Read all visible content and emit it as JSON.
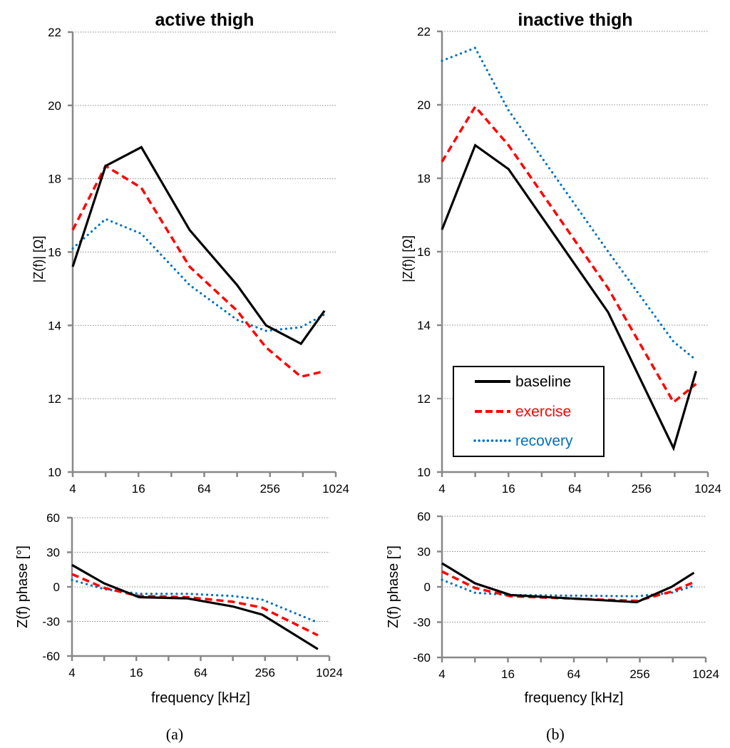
{
  "figure": {
    "captions": [
      "(a)",
      "(b)"
    ],
    "legend": {
      "items": [
        {
          "label": "baseline",
          "color": "#000000",
          "style": "solid"
        },
        {
          "label": "exercise",
          "color": "#ff0000",
          "style": "dashed"
        },
        {
          "label": "recovery",
          "color": "#0070c0",
          "style": "dotted"
        }
      ],
      "placement": "lower-left of inactive thigh magnitude panel"
    }
  },
  "chart_data": [
    {
      "id": "active-magnitude",
      "type": "line",
      "title": "active thigh",
      "xlabel": "",
      "ylabel": "|Z(f)| [Ω]",
      "xscale": "log2",
      "xlim": [
        4,
        1024
      ],
      "xticks": [
        "4",
        "16",
        "64",
        "256",
        "1024"
      ],
      "ylim": [
        10,
        22
      ],
      "yticks": [
        "10",
        "12",
        "14",
        "16",
        "18",
        "20",
        "22"
      ],
      "grid": true,
      "series": [
        {
          "name": "baseline",
          "x": [
            4,
            8,
            17,
            47,
            128,
            235,
            492,
            808
          ],
          "values": [
            15.6,
            18.35,
            18.86,
            16.6,
            15.1,
            14.0,
            13.5,
            14.4
          ]
        },
        {
          "name": "exercise",
          "x": [
            4,
            8,
            17,
            47,
            128,
            235,
            492,
            808
          ],
          "values": [
            16.6,
            18.35,
            17.75,
            15.6,
            14.4,
            13.4,
            12.6,
            12.75
          ]
        },
        {
          "name": "recovery",
          "x": [
            4,
            8,
            17,
            47,
            128,
            235,
            492,
            808
          ],
          "values": [
            16.1,
            16.9,
            16.5,
            15.1,
            14.15,
            13.85,
            13.95,
            14.3
          ]
        }
      ]
    },
    {
      "id": "inactive-magnitude",
      "type": "line",
      "title": "inactive thigh",
      "xlabel": "",
      "ylabel": "|Z(f)| [Ω]",
      "xscale": "log2",
      "xlim": [
        4,
        1024
      ],
      "xticks": [
        "4",
        "16",
        "64",
        "256",
        "1024"
      ],
      "ylim": [
        10,
        22
      ],
      "yticks": [
        "10",
        "12",
        "14",
        "16",
        "18",
        "20",
        "22"
      ],
      "grid": true,
      "series": [
        {
          "name": "baseline",
          "x": [
            4,
            8,
            16,
            128,
            500,
            800
          ],
          "values": [
            16.6,
            18.9,
            18.25,
            14.35,
            10.65,
            12.75
          ]
        },
        {
          "name": "exercise",
          "x": [
            4,
            8,
            16,
            128,
            500,
            800
          ],
          "values": [
            18.45,
            19.95,
            18.9,
            15.0,
            11.9,
            12.4
          ]
        },
        {
          "name": "recovery",
          "x": [
            4,
            8,
            16,
            128,
            500,
            800
          ],
          "values": [
            21.2,
            21.55,
            19.85,
            16.0,
            13.55,
            13.05
          ]
        }
      ]
    },
    {
      "id": "active-phase",
      "type": "line",
      "title": "",
      "xlabel": "frequency [kHz]",
      "ylabel": "Z(f) phase [°]",
      "xscale": "log2",
      "xlim": [
        4,
        1024
      ],
      "xticks": [
        "4",
        "16",
        "64",
        "256",
        "1024"
      ],
      "ylim": [
        -60,
        60
      ],
      "yticks": [
        "-60",
        "-30",
        "0",
        "30",
        "60"
      ],
      "grid": true,
      "series": [
        {
          "name": "baseline",
          "x": [
            4,
            8,
            17,
            48,
            128,
            240,
            800
          ],
          "values": [
            19,
            3,
            -9,
            -10,
            -17,
            -24,
            -54
          ]
        },
        {
          "name": "exercise",
          "x": [
            4,
            8,
            17,
            48,
            128,
            240,
            800
          ],
          "values": [
            11,
            -1,
            -8,
            -9,
            -13,
            -18,
            -42
          ]
        },
        {
          "name": "recovery",
          "x": [
            4,
            8,
            17,
            48,
            128,
            240,
            800
          ],
          "values": [
            6,
            -2,
            -6,
            -6,
            -8,
            -11,
            -31
          ]
        }
      ]
    },
    {
      "id": "inactive-phase",
      "type": "line",
      "title": "",
      "xlabel": "frequency [kHz]",
      "ylabel": "Z(f) phase [°]",
      "xscale": "log2",
      "xlim": [
        4,
        1024
      ],
      "xticks": [
        "4",
        "16",
        "64",
        "256",
        "1024"
      ],
      "ylim": [
        -60,
        60
      ],
      "yticks": [
        "-60",
        "-30",
        "0",
        "30",
        "60"
      ],
      "grid": true,
      "series": [
        {
          "name": "baseline",
          "x": [
            4,
            8,
            17,
            240,
            500,
            800
          ],
          "values": [
            20,
            3,
            -7,
            -13,
            0,
            12
          ]
        },
        {
          "name": "exercise",
          "x": [
            4,
            8,
            17,
            240,
            500,
            800
          ],
          "values": [
            13,
            -1,
            -8,
            -12,
            -4,
            4
          ]
        },
        {
          "name": "recovery",
          "x": [
            4,
            8,
            17,
            240,
            500,
            800
          ],
          "values": [
            6,
            -5,
            -7,
            -8,
            -5,
            1
          ]
        }
      ]
    }
  ]
}
